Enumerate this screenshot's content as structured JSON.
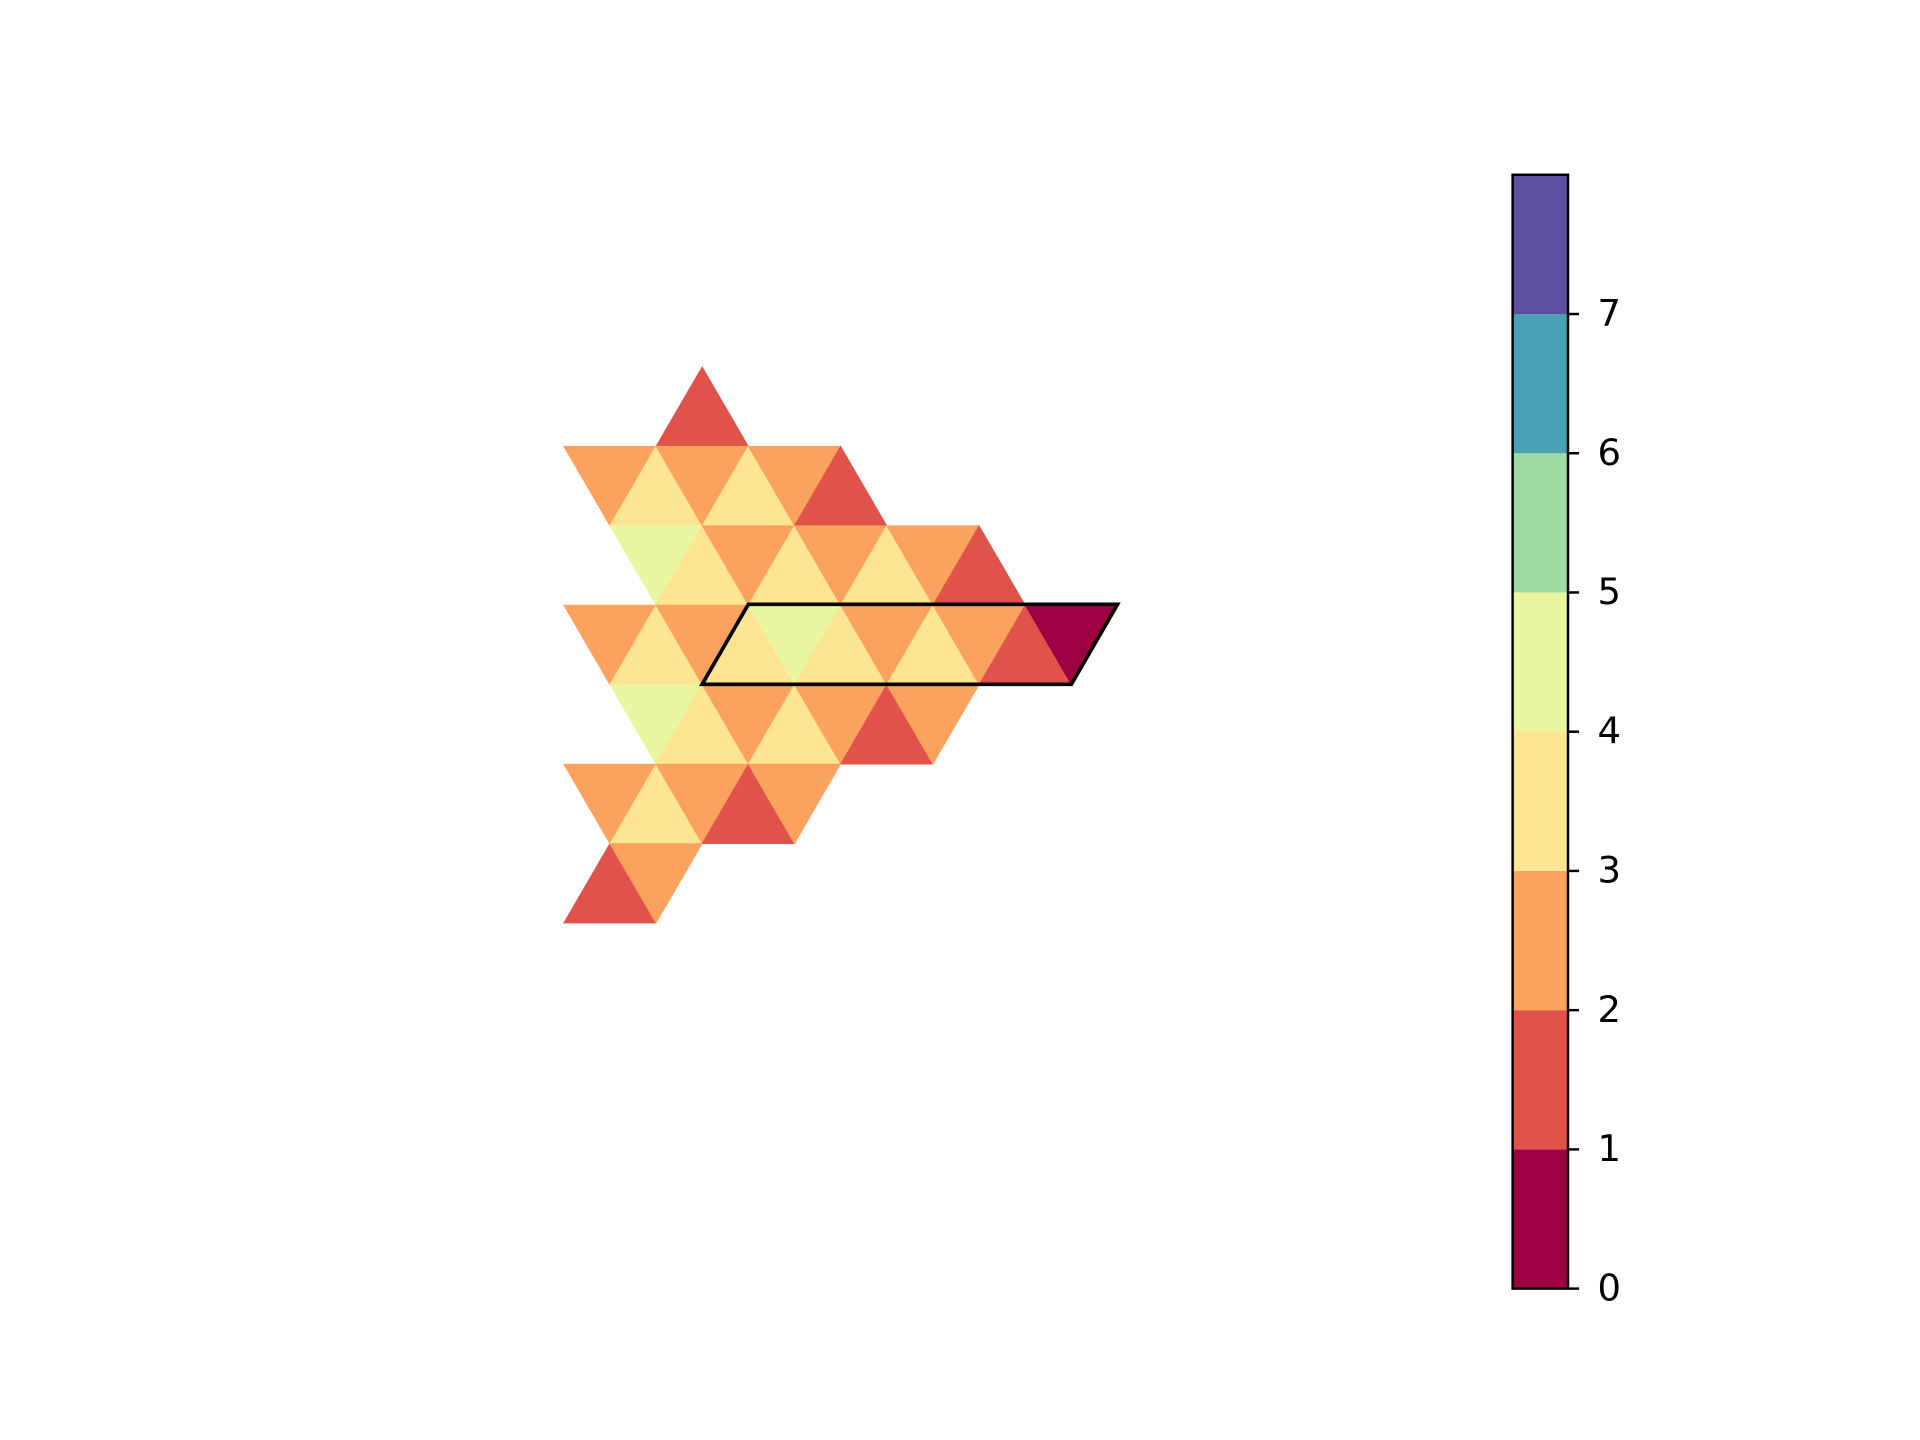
{
  "chart_data": {
    "type": "triangle-heatmap",
    "colormap": [
      "#9e0142",
      "#e1524a",
      "#fba35e",
      "#fee593",
      "#eaf7a0",
      "#a0d9a1",
      "#4aa0b4",
      "#5e4fa2"
    ],
    "clim": [
      0,
      8
    ],
    "cticks": [
      0,
      1,
      2,
      3,
      4,
      5,
      6,
      7
    ],
    "cells": [
      {
        "row": 0,
        "col": 2,
        "up": true,
        "value": 1.5
      },
      {
        "row": 1,
        "col": 0,
        "up": false,
        "value": 2.5
      },
      {
        "row": 1,
        "col": 1,
        "up": true,
        "value": 3.5
      },
      {
        "row": 1,
        "col": 2,
        "up": false,
        "value": 2.5
      },
      {
        "row": 1,
        "col": 3,
        "up": true,
        "value": 3.5
      },
      {
        "row": 1,
        "col": 4,
        "up": false,
        "value": 2.5
      },
      {
        "row": 1,
        "col": 5,
        "up": true,
        "value": 1.5
      },
      {
        "row": 2,
        "col": 1,
        "up": false,
        "value": 4.5
      },
      {
        "row": 2,
        "col": 2,
        "up": true,
        "value": 3.5
      },
      {
        "row": 2,
        "col": 3,
        "up": false,
        "value": 2.5
      },
      {
        "row": 2,
        "col": 4,
        "up": true,
        "value": 3.5
      },
      {
        "row": 2,
        "col": 5,
        "up": false,
        "value": 2.5
      },
      {
        "row": 2,
        "col": 6,
        "up": true,
        "value": 3.5
      },
      {
        "row": 2,
        "col": 7,
        "up": false,
        "value": 2.5
      },
      {
        "row": 2,
        "col": 8,
        "up": true,
        "value": 1.5
      },
      {
        "row": 3,
        "col": 0,
        "up": false,
        "value": 2.5
      },
      {
        "row": 3,
        "col": 1,
        "up": true,
        "value": 3.5
      },
      {
        "row": 3,
        "col": 2,
        "up": false,
        "value": 2.5
      },
      {
        "row": 3,
        "col": 3,
        "up": true,
        "value": 3.5
      },
      {
        "row": 3,
        "col": 4,
        "up": false,
        "value": 4.5
      },
      {
        "row": 3,
        "col": 5,
        "up": true,
        "value": 3.5
      },
      {
        "row": 3,
        "col": 6,
        "up": false,
        "value": 2.5
      },
      {
        "row": 3,
        "col": 7,
        "up": true,
        "value": 3.5
      },
      {
        "row": 3,
        "col": 8,
        "up": false,
        "value": 2.5
      },
      {
        "row": 3,
        "col": 9,
        "up": true,
        "value": 1.5
      },
      {
        "row": 3,
        "col": 10,
        "up": false,
        "value": 0.5
      },
      {
        "row": 4,
        "col": 1,
        "up": false,
        "value": 4.5
      },
      {
        "row": 4,
        "col": 2,
        "up": true,
        "value": 3.5
      },
      {
        "row": 4,
        "col": 3,
        "up": false,
        "value": 2.5
      },
      {
        "row": 4,
        "col": 4,
        "up": true,
        "value": 3.5
      },
      {
        "row": 4,
        "col": 5,
        "up": false,
        "value": 2.5
      },
      {
        "row": 4,
        "col": 6,
        "up": true,
        "value": 1.5
      },
      {
        "row": 4,
        "col": 7,
        "up": false,
        "value": 2.5
      },
      {
        "row": 5,
        "col": 0,
        "up": false,
        "value": 2.5
      },
      {
        "row": 5,
        "col": 1,
        "up": true,
        "value": 3.5
      },
      {
        "row": 5,
        "col": 2,
        "up": false,
        "value": 2.5
      },
      {
        "row": 5,
        "col": 3,
        "up": true,
        "value": 1.5
      },
      {
        "row": 5,
        "col": 4,
        "up": false,
        "value": 2.5
      },
      {
        "row": 6,
        "col": 0,
        "up": true,
        "value": 1.5
      },
      {
        "row": 6,
        "col": 1,
        "up": false,
        "value": 2.5
      }
    ]
  }
}
